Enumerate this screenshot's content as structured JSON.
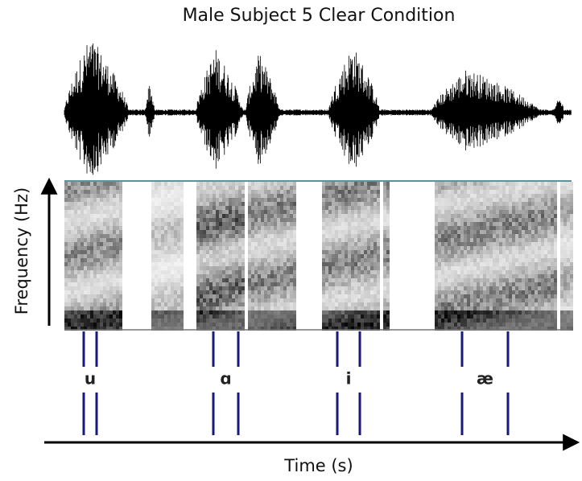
{
  "title": "Male Subject 5 Clear Condition",
  "y_axis_label": "Frequency (Hz)",
  "x_axis_label": "Time (s)",
  "vowels": [
    "u",
    "ɑ",
    "i",
    "æ"
  ]
}
